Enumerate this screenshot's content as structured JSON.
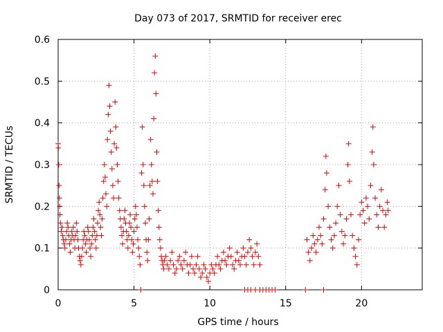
{
  "chart_data": {
    "type": "scatter",
    "title": "Day 073 of 2017, SRMTID for receiver erec",
    "xlabel": "GPS time / hours",
    "ylabel": "SRMTID / TECUs",
    "xlim": [
      0,
      24
    ],
    "ylim": [
      0,
      0.6
    ],
    "xticks": [
      0,
      5,
      10,
      15,
      20
    ],
    "yticks": [
      0,
      0.1,
      0.2,
      0.3,
      0.4,
      0.5,
      0.6
    ],
    "xtick_labels": [
      "0",
      "5",
      "10",
      "15",
      "20"
    ],
    "ytick_labels": [
      "0",
      "0.1",
      "0.2",
      "0.3",
      "0.4",
      "0.5",
      "0.6"
    ],
    "grid": true,
    "marker": "+",
    "color": "#e00000",
    "series": [
      {
        "name": "SRMTID",
        "points": [
          [
            0.0,
            0.35
          ],
          [
            0.02,
            0.34
          ],
          [
            0.04,
            0.3
          ],
          [
            0.06,
            0.25
          ],
          [
            0.08,
            0.22
          ],
          [
            0.1,
            0.2
          ],
          [
            0.12,
            0.18
          ],
          [
            0.15,
            0.16
          ],
          [
            0.2,
            0.14
          ],
          [
            0.25,
            0.15
          ],
          [
            0.3,
            0.13
          ],
          [
            0.35,
            0.12
          ],
          [
            0.4,
            0.11
          ],
          [
            0.45,
            0.1
          ],
          [
            0.5,
            0.12
          ],
          [
            0.55,
            0.14
          ],
          [
            0.6,
            0.16
          ],
          [
            0.65,
            0.15
          ],
          [
            0.7,
            0.13
          ],
          [
            0.75,
            0.11
          ],
          [
            0.8,
            0.09
          ],
          [
            0.85,
            0.12
          ],
          [
            0.9,
            0.14
          ],
          [
            0.95,
            0.13
          ],
          [
            1.0,
            0.15
          ],
          [
            1.05,
            0.12
          ],
          [
            1.1,
            0.1
          ],
          [
            1.15,
            0.13
          ],
          [
            1.2,
            0.16
          ],
          [
            1.25,
            0.14
          ],
          [
            1.3,
            0.12
          ],
          [
            1.35,
            0.1
          ],
          [
            1.4,
            0.08
          ],
          [
            1.45,
            0.07
          ],
          [
            1.5,
            0.06
          ],
          [
            1.55,
            0.08
          ],
          [
            1.6,
            0.1
          ],
          [
            1.65,
            0.12
          ],
          [
            1.7,
            0.14
          ],
          [
            1.75,
            0.13
          ],
          [
            1.8,
            0.11
          ],
          [
            1.85,
            0.09
          ],
          [
            1.9,
            0.12
          ],
          [
            1.95,
            0.15
          ],
          [
            2.0,
            0.14
          ],
          [
            2.05,
            0.12
          ],
          [
            2.1,
            0.1
          ],
          [
            2.15,
            0.08
          ],
          [
            2.2,
            0.11
          ],
          [
            2.25,
            0.13
          ],
          [
            2.3,
            0.15
          ],
          [
            2.35,
            0.17
          ],
          [
            2.4,
            0.14
          ],
          [
            2.45,
            0.12
          ],
          [
            2.5,
            0.1
          ],
          [
            2.55,
            0.13
          ],
          [
            2.6,
            0.16
          ],
          [
            2.65,
            0.19
          ],
          [
            2.7,
            0.21
          ],
          [
            2.75,
            0.18
          ],
          [
            2.8,
            0.15
          ],
          [
            2.85,
            0.13
          ],
          [
            2.9,
            0.17
          ],
          [
            2.95,
            0.22
          ],
          [
            3.0,
            0.26
          ],
          [
            3.05,
            0.3
          ],
          [
            3.1,
            0.27
          ],
          [
            3.15,
            0.23
          ],
          [
            3.2,
            0.2
          ],
          [
            3.25,
            0.36
          ],
          [
            3.3,
            0.42
          ],
          [
            3.35,
            0.49
          ],
          [
            3.4,
            0.44
          ],
          [
            3.45,
            0.38
          ],
          [
            3.5,
            0.33
          ],
          [
            3.55,
            0.29
          ],
          [
            3.6,
            0.25
          ],
          [
            3.65,
            0.22
          ],
          [
            3.7,
            0.35
          ],
          [
            3.75,
            0.45
          ],
          [
            3.8,
            0.39
          ],
          [
            3.85,
            0.34
          ],
          [
            3.9,
            0.3
          ],
          [
            3.95,
            0.26
          ],
          [
            4.0,
            0.22
          ],
          [
            4.05,
            0.19
          ],
          [
            4.1,
            0.17
          ],
          [
            4.15,
            0.15
          ],
          [
            4.2,
            0.13
          ],
          [
            4.25,
            0.11
          ],
          [
            4.3,
            0.14
          ],
          [
            4.35,
            0.17
          ],
          [
            4.4,
            0.19
          ],
          [
            4.45,
            0.16
          ],
          [
            4.5,
            0.14
          ],
          [
            4.55,
            0.12
          ],
          [
            4.6,
            0.1
          ],
          [
            4.65,
            0.13
          ],
          [
            4.7,
            0.16
          ],
          [
            4.75,
            0.18
          ],
          [
            4.8,
            0.15
          ],
          [
            4.85,
            0.12
          ],
          [
            4.9,
            0.09
          ],
          [
            4.95,
            0.11
          ],
          [
            5.0,
            0.14
          ],
          [
            5.05,
            0.17
          ],
          [
            5.1,
            0.2
          ],
          [
            5.15,
            0.18
          ],
          [
            5.2,
            0.15
          ],
          [
            5.25,
            0.12
          ],
          [
            5.3,
            0.1
          ],
          [
            5.35,
            0.08
          ],
          [
            5.4,
            0.06
          ],
          [
            5.45,
            0.0
          ],
          [
            5.5,
            0.28
          ],
          [
            5.55,
            0.39
          ],
          [
            5.6,
            0.3
          ],
          [
            5.65,
            0.25
          ],
          [
            5.7,
            0.2
          ],
          [
            5.75,
            0.16
          ],
          [
            5.8,
            0.12
          ],
          [
            5.85,
            0.09
          ],
          [
            5.9,
            0.07
          ],
          [
            5.95,
            0.12
          ],
          [
            6.0,
            0.17
          ],
          [
            6.05,
            0.25
          ],
          [
            6.1,
            0.36
          ],
          [
            6.15,
            0.3
          ],
          [
            6.2,
            0.26
          ],
          [
            6.25,
            0.23
          ],
          [
            6.3,
            0.41
          ],
          [
            6.35,
            0.52
          ],
          [
            6.4,
            0.56
          ],
          [
            6.45,
            0.47
          ],
          [
            6.5,
            0.33
          ],
          [
            6.55,
            0.26
          ],
          [
            6.6,
            0.19
          ],
          [
            6.65,
            0.15
          ],
          [
            6.7,
            0.12
          ],
          [
            6.75,
            0.1
          ],
          [
            6.8,
            0.08
          ],
          [
            6.85,
            0.07
          ],
          [
            6.9,
            0.06
          ],
          [
            6.95,
            0.05
          ],
          [
            7.0,
            0.07
          ],
          [
            7.1,
            0.08
          ],
          [
            7.2,
            0.06
          ],
          [
            7.3,
            0.05
          ],
          [
            7.4,
            0.07
          ],
          [
            7.5,
            0.09
          ],
          [
            7.6,
            0.06
          ],
          [
            7.7,
            0.04
          ],
          [
            7.8,
            0.05
          ],
          [
            7.9,
            0.07
          ],
          [
            8.0,
            0.08
          ],
          [
            8.1,
            0.06
          ],
          [
            8.2,
            0.05
          ],
          [
            8.3,
            0.07
          ],
          [
            8.4,
            0.09
          ],
          [
            8.5,
            0.06
          ],
          [
            8.6,
            0.04
          ],
          [
            8.7,
            0.06
          ],
          [
            8.8,
            0.08
          ],
          [
            8.9,
            0.05
          ],
          [
            9.0,
            0.04
          ],
          [
            9.1,
            0.06
          ],
          [
            9.2,
            0.08
          ],
          [
            9.3,
            0.05
          ],
          [
            9.4,
            0.03
          ],
          [
            9.5,
            0.04
          ],
          [
            9.6,
            0.06
          ],
          [
            9.7,
            0.05
          ],
          [
            9.8,
            0.03
          ],
          [
            9.9,
            0.02
          ],
          [
            10.0,
            0.04
          ],
          [
            10.1,
            0.06
          ],
          [
            10.2,
            0.05
          ],
          [
            10.3,
            0.04
          ],
          [
            10.4,
            0.06
          ],
          [
            10.5,
            0.08
          ],
          [
            10.6,
            0.06
          ],
          [
            10.7,
            0.05
          ],
          [
            10.8,
            0.07
          ],
          [
            10.9,
            0.09
          ],
          [
            11.0,
            0.07
          ],
          [
            11.1,
            0.06
          ],
          [
            11.2,
            0.08
          ],
          [
            11.3,
            0.1
          ],
          [
            11.4,
            0.08
          ],
          [
            11.5,
            0.06
          ],
          [
            11.6,
            0.05
          ],
          [
            11.7,
            0.07
          ],
          [
            11.8,
            0.09
          ],
          [
            11.9,
            0.07
          ],
          [
            12.0,
            0.06
          ],
          [
            12.1,
            0.08
          ],
          [
            12.2,
            0.1
          ],
          [
            12.3,
            0.08
          ],
          [
            12.4,
            0.06
          ],
          [
            12.5,
            0.09
          ],
          [
            12.6,
            0.12
          ],
          [
            12.7,
            0.1
          ],
          [
            12.8,
            0.08
          ],
          [
            12.9,
            0.06
          ],
          [
            13.0,
            0.09
          ],
          [
            13.1,
            0.11
          ],
          [
            13.2,
            0.08
          ],
          [
            13.3,
            0.06
          ],
          [
            12.3,
            0.0
          ],
          [
            12.5,
            0.0
          ],
          [
            12.7,
            0.0
          ],
          [
            13.0,
            0.0
          ],
          [
            13.3,
            0.0
          ],
          [
            13.5,
            0.0
          ],
          [
            13.7,
            0.0
          ],
          [
            13.9,
            0.0
          ],
          [
            14.1,
            0.0
          ],
          [
            14.3,
            0.0
          ],
          [
            16.3,
            0.0
          ],
          [
            17.5,
            0.0
          ],
          [
            16.4,
            0.12
          ],
          [
            16.5,
            0.09
          ],
          [
            16.6,
            0.07
          ],
          [
            16.7,
            0.1
          ],
          [
            16.8,
            0.13
          ],
          [
            16.9,
            0.11
          ],
          [
            17.0,
            0.09
          ],
          [
            17.1,
            0.12
          ],
          [
            17.2,
            0.15
          ],
          [
            17.3,
            0.13
          ],
          [
            17.4,
            0.11
          ],
          [
            17.5,
            0.17
          ],
          [
            17.6,
            0.24
          ],
          [
            17.65,
            0.32
          ],
          [
            17.7,
            0.28
          ],
          [
            17.8,
            0.2
          ],
          [
            17.9,
            0.15
          ],
          [
            18.0,
            0.12
          ],
          [
            18.1,
            0.1
          ],
          [
            18.2,
            0.13
          ],
          [
            18.3,
            0.16
          ],
          [
            18.4,
            0.2
          ],
          [
            18.5,
            0.25
          ],
          [
            18.6,
            0.18
          ],
          [
            18.7,
            0.14
          ],
          [
            18.8,
            0.11
          ],
          [
            18.9,
            0.13
          ],
          [
            19.0,
            0.17
          ],
          [
            19.1,
            0.3
          ],
          [
            19.15,
            0.35
          ],
          [
            19.2,
            0.26
          ],
          [
            19.3,
            0.18
          ],
          [
            19.4,
            0.13
          ],
          [
            19.5,
            0.1
          ],
          [
            19.6,
            0.08
          ],
          [
            19.7,
            0.06
          ],
          [
            19.8,
            0.12
          ],
          [
            19.9,
            0.18
          ],
          [
            20.0,
            0.21
          ],
          [
            20.1,
            0.19
          ],
          [
            20.2,
            0.16
          ],
          [
            20.3,
            0.22
          ],
          [
            20.4,
            0.2
          ],
          [
            20.5,
            0.17
          ],
          [
            20.6,
            0.25
          ],
          [
            20.7,
            0.33
          ],
          [
            20.75,
            0.39
          ],
          [
            20.8,
            0.3
          ],
          [
            20.9,
            0.22
          ],
          [
            21.0,
            0.18
          ],
          [
            21.1,
            0.15
          ],
          [
            21.2,
            0.2
          ],
          [
            21.3,
            0.24
          ],
          [
            21.4,
            0.19
          ],
          [
            21.5,
            0.15
          ],
          [
            21.6,
            0.18
          ],
          [
            21.7,
            0.21
          ],
          [
            21.75,
            0.19
          ]
        ]
      }
    ]
  }
}
